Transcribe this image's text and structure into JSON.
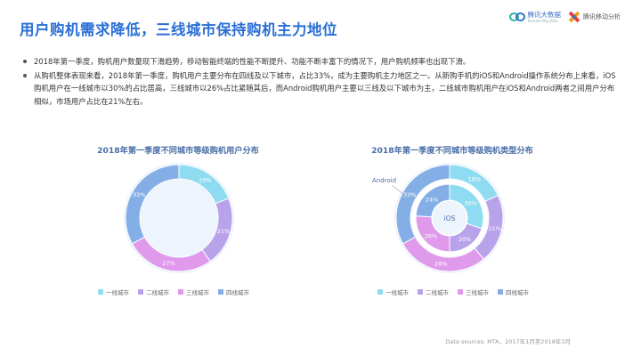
{
  "title": "用户购机需求降低，三线城市保持购机主力地位",
  "logos": {
    "brand1_text": "腾讯大数据",
    "brand1_sub": "Tencent Big Data",
    "brand2_text": "腾讯移动分析"
  },
  "bullets": [
    "2018年第一季度，购机用户数量现下滑趋势，移动智能终端的性能不断提升、功能不断丰富下的情况下，用户购机频率也出现下滑。",
    "从购机整体表现来看，2018年第一季度，购机用户主要分布在四线及以下城市，占比33%，成为主要购机主力地区之一。从新购手机的iOS和Android操作系统分布上来看，iOS购机用户在一线城市以30%的占比居高，三线城市以26%占比紧随其后，而Android购机用户主要以三线及以下城市为主，二线城市购机用户在iOS和Android两者之间用户分布相似，市场用户占比在21%左右。"
  ],
  "colors": {
    "tier1": "#8fdcf2",
    "tier2": "#b8a3ea",
    "tier3": "#df9aec",
    "tier4": "#84aee6",
    "title": "#2a6fd6"
  },
  "source": "Data sources: MTA，2017年1月至2018年3月",
  "chart_data": [
    {
      "type": "pie",
      "title": "2018年第一季度不同城市等级购机用户分布",
      "categories": [
        "一线城市",
        "二线城市",
        "三线城市",
        "四线城市"
      ],
      "series": [
        {
          "values": [
            19,
            21,
            27,
            33
          ],
          "labels": [
            "19%",
            "21%",
            "27%",
            "33%"
          ]
        }
      ],
      "legend": "bottom"
    },
    {
      "type": "pie",
      "title": "2018年第一季度不同城市等级购机类型分布",
      "categories": [
        "一线城市",
        "二线城市",
        "三线城市",
        "四线城市"
      ],
      "series": [
        {
          "name": "Android",
          "values": [
            18,
            21,
            28,
            33
          ],
          "labels": [
            "18%",
            "21%",
            "28%",
            "33%"
          ]
        },
        {
          "name": "iOS",
          "values": [
            30,
            20,
            26,
            24
          ],
          "labels": [
            "30%",
            "20%",
            "26%",
            "24%"
          ]
        }
      ],
      "legend": "bottom"
    }
  ]
}
